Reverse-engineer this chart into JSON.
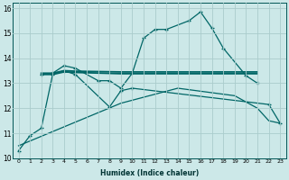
{
  "xlabel": "Humidex (Indice chaleur)",
  "background_color": "#cce8e8",
  "grid_color": "#aacccc",
  "line_color": "#006666",
  "xlim": [
    -0.5,
    23.5
  ],
  "ylim": [
    10,
    16.2
  ],
  "yticks": [
    10,
    11,
    12,
    13,
    14,
    15,
    16
  ],
  "xticks": [
    0,
    1,
    2,
    3,
    4,
    5,
    6,
    7,
    8,
    9,
    10,
    11,
    12,
    13,
    14,
    15,
    16,
    17,
    18,
    19,
    20,
    21,
    22,
    23
  ],
  "curve1_x": [
    0,
    1,
    2,
    3,
    4,
    5,
    8,
    9,
    10,
    22,
    23
  ],
  "curve1_y": [
    10.3,
    10.9,
    11.2,
    13.35,
    13.5,
    13.35,
    12.05,
    12.7,
    12.8,
    12.15,
    11.4
  ],
  "curve2_x": [
    2,
    3,
    4,
    5,
    7,
    8,
    9,
    10,
    11,
    12,
    13,
    15,
    16,
    17,
    18,
    20,
    21
  ],
  "curve2_y": [
    13.35,
    13.4,
    13.7,
    13.6,
    13.1,
    13.1,
    12.8,
    13.4,
    14.8,
    15.15,
    15.15,
    15.5,
    15.85,
    15.2,
    14.4,
    13.3,
    13.0
  ],
  "flat1_x": [
    2,
    3,
    4,
    5,
    9,
    10,
    11,
    12,
    13,
    14,
    15,
    16,
    17,
    18,
    19,
    20,
    21
  ],
  "flat1_y": [
    13.4,
    13.4,
    13.5,
    13.48,
    13.45,
    13.45,
    13.45,
    13.45,
    13.45,
    13.45,
    13.45,
    13.45,
    13.45,
    13.45,
    13.45,
    13.45,
    13.45
  ],
  "flat2_x": [
    2,
    3,
    4,
    5,
    9,
    10,
    11,
    12,
    13,
    14,
    15,
    16,
    17,
    18,
    19,
    20,
    21
  ],
  "flat2_y": [
    13.35,
    13.35,
    13.45,
    13.43,
    13.38,
    13.38,
    13.38,
    13.38,
    13.38,
    13.38,
    13.38,
    13.38,
    13.38,
    13.38,
    13.38,
    13.38,
    13.38
  ],
  "diag_x": [
    0,
    9,
    14,
    19,
    21,
    22,
    23
  ],
  "diag_y": [
    10.5,
    12.2,
    12.8,
    12.5,
    12.0,
    11.5,
    11.4
  ]
}
